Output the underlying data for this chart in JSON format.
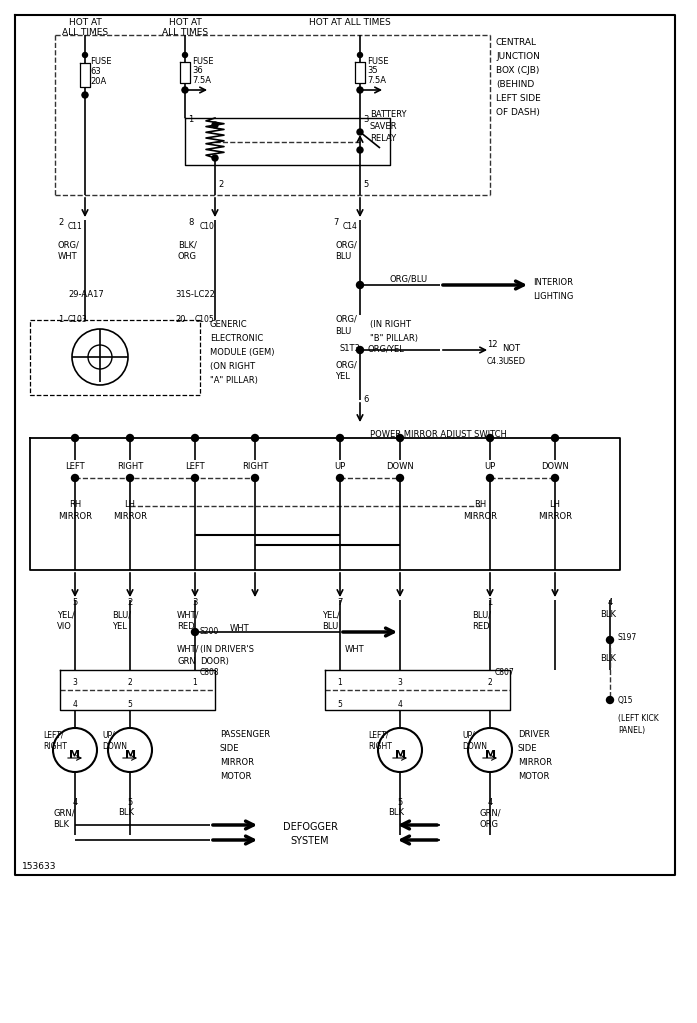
{
  "bg_color": "#ffffff",
  "line_color": "#000000",
  "fig_width": 6.97,
  "fig_height": 10.23,
  "dpi": 100,
  "diagram_number": "153633",
  "xlim": [
    0,
    697
  ],
  "ylim": [
    0,
    1023
  ]
}
